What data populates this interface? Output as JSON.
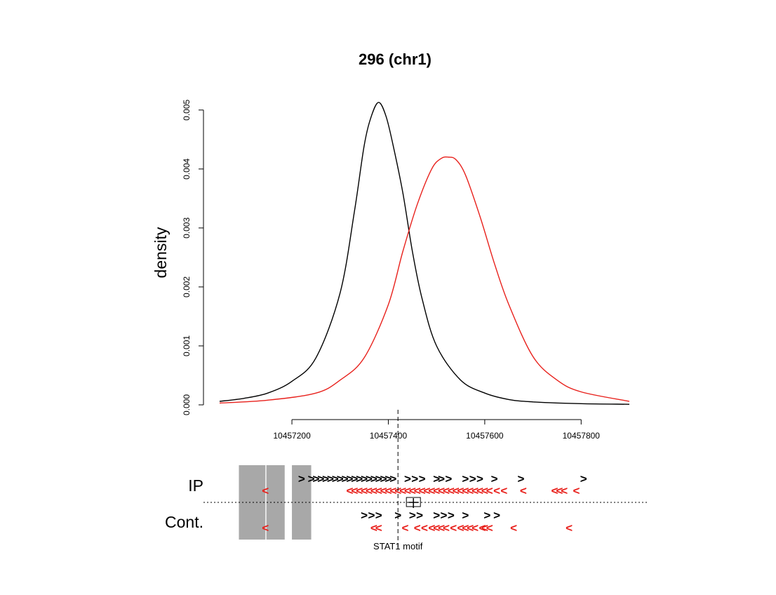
{
  "chart_data": {
    "type": "line",
    "title": "296 (chr1)",
    "ylabel": "density",
    "xlabel": "",
    "xlim": [
      10457050,
      10457900
    ],
    "ylim": [
      0,
      0.0052
    ],
    "x_ticks": [
      "10457200",
      "10457400",
      "10457600",
      "10457800"
    ],
    "y_ticks": [
      "0.000",
      "0.001",
      "0.002",
      "0.003",
      "0.004",
      "0.005"
    ],
    "grid": false,
    "series": [
      {
        "color": "#000000",
        "x": [
          10457050,
          10457100,
          10457150,
          10457200,
          10457250,
          10457300,
          10457330,
          10457350,
          10457365,
          10457380,
          10457395,
          10457410,
          10457430,
          10457450,
          10457470,
          10457500,
          10457550,
          10457600,
          10457650,
          10457700,
          10457800,
          10457900
        ],
        "values": [
          6e-05,
          0.00011,
          0.0002,
          0.0004,
          0.0008,
          0.0019,
          0.0033,
          0.0044,
          0.0049,
          0.00513,
          0.0049,
          0.0044,
          0.0036,
          0.0026,
          0.0018,
          0.001,
          0.00042,
          0.0002,
          9e-05,
          5e-05,
          2e-05,
          1e-05
        ]
      },
      {
        "color": "#e8211c",
        "x": [
          10457050,
          10457150,
          10457250,
          10457300,
          10457350,
          10457400,
          10457430,
          10457460,
          10457490,
          10457510,
          10457525,
          10457540,
          10457560,
          10457590,
          10457620,
          10457650,
          10457700,
          10457750,
          10457800,
          10457900
        ],
        "values": [
          3e-05,
          8e-05,
          0.0002,
          0.00042,
          0.0008,
          0.0017,
          0.0026,
          0.0034,
          0.004,
          0.00418,
          0.0042,
          0.00416,
          0.0039,
          0.0032,
          0.0024,
          0.0017,
          0.00082,
          0.00042,
          0.00022,
          6e-05
        ]
      }
    ],
    "tracks": {
      "labels": [
        "IP",
        "Cont."
      ],
      "motif_label": "STAT1 motif",
      "motif_position": 10457420,
      "exclusion_blocks": [
        [
          10457090,
          10457145
        ],
        [
          10457147,
          10457185
        ],
        [
          10457200,
          10457240
        ]
      ],
      "ip_forward": [
        10457220,
        10457240,
        10457250,
        10457260,
        10457270,
        10457280,
        10457290,
        10457300,
        10457310,
        10457320,
        10457330,
        10457340,
        10457350,
        10457360,
        10457370,
        10457380,
        10457390,
        10457400,
        10457410,
        10457440,
        10457455,
        10457470,
        10457500,
        10457510,
        10457525,
        10457560,
        10457575,
        10457590,
        10457620,
        10457675,
        10457805
      ],
      "ip_reverse": [
        10457145,
        10457320,
        10457330,
        10457340,
        10457350,
        10457360,
        10457370,
        10457380,
        10457390,
        10457400,
        10457410,
        10457420,
        10457430,
        10457440,
        10457450,
        10457460,
        10457470,
        10457480,
        10457490,
        10457500,
        10457510,
        10457520,
        10457530,
        10457540,
        10457550,
        10457560,
        10457570,
        10457580,
        10457590,
        10457600,
        10457610,
        10457625,
        10457640,
        10457680,
        10457745,
        10457755,
        10457765,
        10457790
      ],
      "cont_forward": [
        10457350,
        10457365,
        10457380,
        10457420,
        10457450,
        10457465,
        10457500,
        10457515,
        10457530,
        10457560,
        10457605,
        10457625
      ],
      "cont_reverse": [
        10457145,
        10457370,
        10457380,
        10457435,
        10457460,
        10457475,
        10457490,
        10457500,
        10457510,
        10457520,
        10457535,
        10457550,
        10457560,
        10457570,
        10457580,
        10457595,
        10457600,
        10457610,
        10457660,
        10457775
      ]
    }
  }
}
